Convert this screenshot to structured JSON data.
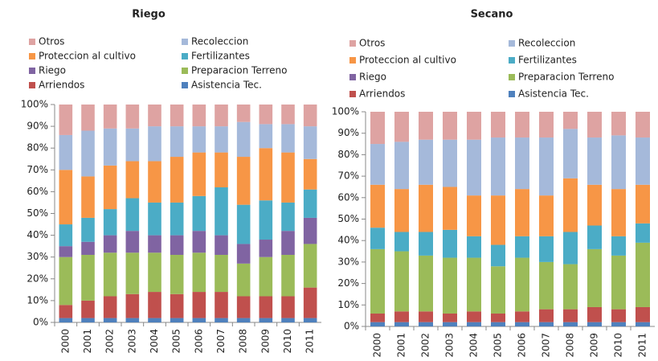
{
  "chart_data": [
    {
      "type": "bar",
      "stacked": true,
      "title": "Riego",
      "categories": [
        "2000",
        "2001",
        "2002",
        "2003",
        "2004",
        "2005",
        "2006",
        "2007",
        "2008",
        "2009",
        "2010",
        "2011"
      ],
      "series": [
        {
          "name": "Asistencia Tec.",
          "color": "#4f81bd",
          "values": [
            2,
            2,
            2,
            2,
            2,
            2,
            2,
            2,
            2,
            2,
            2,
            2
          ]
        },
        {
          "name": "Arriendos",
          "color": "#c0504d",
          "values": [
            6,
            8,
            10,
            11,
            12,
            11,
            12,
            12,
            10,
            10,
            10,
            14
          ]
        },
        {
          "name": "Preparacion Terreno",
          "color": "#9bbb59",
          "values": [
            22,
            21,
            20,
            19,
            18,
            18,
            18,
            17,
            15,
            18,
            19,
            20
          ]
        },
        {
          "name": "Riego",
          "color": "#8064a2",
          "values": [
            5,
            6,
            8,
            10,
            8,
            9,
            10,
            9,
            9,
            8,
            11,
            12
          ]
        },
        {
          "name": "Fertilizantes",
          "color": "#4bacc6",
          "values": [
            10,
            11,
            12,
            15,
            15,
            15,
            16,
            22,
            18,
            18,
            13,
            13
          ]
        },
        {
          "name": "Proteccion al cultivo",
          "color": "#f79646",
          "values": [
            25,
            19,
            20,
            17,
            19,
            21,
            20,
            16,
            22,
            24,
            23,
            14
          ]
        },
        {
          "name": "Recoleccion",
          "color": "#a5b9da",
          "values": [
            16,
            21,
            17,
            15,
            16,
            14,
            12,
            12,
            16,
            11,
            13,
            15
          ]
        },
        {
          "name": "Otros",
          "color": "#dea3a2",
          "values": [
            14,
            12,
            11,
            11,
            10,
            10,
            10,
            10,
            8,
            9,
            9,
            10
          ]
        }
      ],
      "ylim": [
        0,
        100
      ],
      "yticks": [
        {
          "value": 0,
          "label": "0%"
        },
        {
          "value": 10,
          "label": "10%"
        },
        {
          "value": 20,
          "label": "20%"
        },
        {
          "value": 30,
          "label": "30%"
        },
        {
          "value": 40,
          "label": "40%"
        },
        {
          "value": 50,
          "label": "50%"
        },
        {
          "value": 60,
          "label": "60%"
        },
        {
          "value": 70,
          "label": "70%"
        },
        {
          "value": 80,
          "label": "80%"
        },
        {
          "value": 90,
          "label": "90%"
        },
        {
          "value": 100,
          "label": "100%"
        }
      ]
    },
    {
      "type": "bar",
      "stacked": true,
      "title": "Secano",
      "categories": [
        "2000",
        "2001",
        "2002",
        "2003",
        "2004",
        "2005",
        "2006",
        "2007",
        "2008",
        "2009",
        "2010",
        "2011"
      ],
      "series": [
        {
          "name": "Asistencia Tec.",
          "color": "#4f81bd",
          "values": [
            2,
            2,
            2,
            2,
            2,
            2,
            2,
            2,
            2,
            2,
            2,
            2
          ]
        },
        {
          "name": "Arriendos",
          "color": "#c0504d",
          "values": [
            4,
            5,
            5,
            4,
            5,
            4,
            5,
            6,
            6,
            7,
            6,
            7
          ]
        },
        {
          "name": "Preparacion Terreno",
          "color": "#9bbb59",
          "values": [
            30,
            28,
            26,
            26,
            25,
            22,
            25,
            22,
            21,
            27,
            25,
            30
          ]
        },
        {
          "name": "Riego",
          "color": "#8064a2",
          "values": [
            0,
            0,
            0,
            0,
            0,
            0,
            0,
            0,
            0,
            0,
            0,
            0
          ]
        },
        {
          "name": "Fertilizantes",
          "color": "#4bacc6",
          "values": [
            10,
            9,
            11,
            13,
            10,
            10,
            10,
            12,
            15,
            11,
            9,
            9
          ]
        },
        {
          "name": "Proteccion al cultivo",
          "color": "#f79646",
          "values": [
            20,
            20,
            22,
            20,
            19,
            23,
            22,
            19,
            25,
            19,
            22,
            18
          ]
        },
        {
          "name": "Recoleccion",
          "color": "#a5b9da",
          "values": [
            19,
            22,
            21,
            22,
            26,
            27,
            24,
            27,
            23,
            22,
            25,
            22
          ]
        },
        {
          "name": "Otros",
          "color": "#dea3a2",
          "values": [
            15,
            14,
            13,
            13,
            13,
            12,
            12,
            12,
            8,
            12,
            11,
            12
          ]
        }
      ],
      "ylim": [
        0,
        100
      ],
      "yticks": [
        {
          "value": 0,
          "label": "0%"
        },
        {
          "value": 10,
          "label": "10%"
        },
        {
          "value": 20,
          "label": "20%"
        },
        {
          "value": 30,
          "label": "30%"
        },
        {
          "value": 40,
          "label": "40%"
        },
        {
          "value": 50,
          "label": "50%"
        },
        {
          "value": 60,
          "label": "60%"
        },
        {
          "value": 70,
          "label": "70%"
        },
        {
          "value": 80,
          "label": "80%"
        },
        {
          "value": 90,
          "label": "90%"
        },
        {
          "value": 100,
          "label": "100%"
        }
      ]
    }
  ]
}
